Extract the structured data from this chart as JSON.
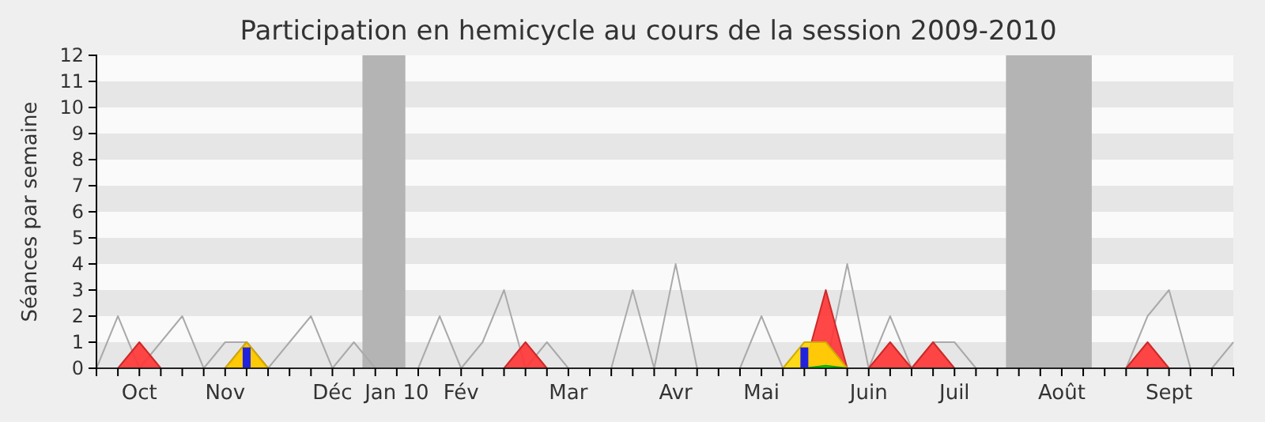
{
  "chart_data": {
    "type": "area",
    "title": "Participation en hemicycle au cours de la session 2009-2010",
    "ylabel": "Séances par semaine",
    "categories": [
      null,
      null,
      "Oct",
      null,
      null,
      null,
      "Nov",
      null,
      null,
      null,
      null,
      "Déc",
      null,
      null,
      "Jan 10",
      null,
      null,
      "Fév",
      null,
      null,
      null,
      null,
      "Mar",
      null,
      null,
      null,
      null,
      "Avr",
      null,
      null,
      null,
      "Mai",
      null,
      null,
      null,
      null,
      "Juin",
      null,
      null,
      null,
      "Juil",
      null,
      null,
      null,
      null,
      "Août",
      null,
      null,
      null,
      null,
      "Sept",
      null,
      null,
      null
    ],
    "series": [
      {
        "type": "line",
        "color": "#aaaaaa",
        "values": [
          0,
          2,
          0,
          1,
          2,
          0,
          1,
          1,
          0,
          1,
          2,
          0,
          1,
          0,
          0,
          0,
          2,
          0,
          1,
          3,
          0,
          1,
          0,
          0,
          0,
          3,
          0,
          4,
          0,
          0,
          0,
          2,
          0,
          0,
          0,
          4,
          0,
          2,
          0,
          1,
          1,
          0,
          0,
          0,
          0,
          0,
          0,
          0,
          0,
          2,
          3,
          0,
          0,
          1
        ]
      },
      {
        "color": "#ff3333",
        "values": [
          0,
          0,
          1,
          0,
          0,
          0,
          0,
          1,
          0,
          0,
          0,
          0,
          0,
          0,
          0,
          0,
          0,
          0,
          0,
          0,
          1,
          0,
          0,
          0,
          0,
          0,
          0,
          0,
          0,
          0,
          0,
          0,
          0,
          0,
          3,
          0,
          0,
          1,
          0,
          1,
          0,
          0,
          0,
          0,
          0,
          0,
          0,
          0,
          0,
          1,
          0,
          0,
          0,
          0
        ]
      },
      {
        "color": "#ffd700",
        "values": [
          0,
          0,
          0,
          0,
          0,
          0,
          0,
          1,
          0,
          0,
          0,
          0,
          0,
          0,
          0,
          0,
          0,
          0,
          0,
          0,
          0,
          0,
          0,
          0,
          0,
          0,
          0,
          0,
          0,
          0,
          0,
          0,
          0,
          1,
          1,
          0,
          0,
          0,
          0,
          0,
          0,
          0,
          0,
          0,
          0,
          0,
          0,
          0,
          0,
          0,
          0,
          0,
          0,
          0
        ]
      },
      {
        "color": "#00dd00",
        "values": [
          0,
          0,
          0,
          0,
          0,
          0,
          0,
          0,
          0,
          0,
          0,
          0,
          0,
          0,
          0,
          0,
          0,
          0,
          0,
          0,
          0,
          0,
          0,
          0,
          0,
          0,
          0,
          0,
          0,
          0,
          0,
          0,
          0,
          0,
          0.1,
          0,
          0,
          0,
          0,
          0,
          0,
          0,
          0,
          0,
          0,
          0,
          0,
          0,
          0,
          0,
          0,
          0,
          0,
          0
        ]
      },
      {
        "type": "bar",
        "color": "#2222dd",
        "values": [
          null,
          null,
          null,
          null,
          null,
          null,
          null,
          0.8,
          null,
          null,
          null,
          null,
          null,
          null,
          null,
          null,
          null,
          null,
          null,
          null,
          null,
          null,
          null,
          null,
          null,
          null,
          null,
          null,
          null,
          null,
          null,
          null,
          null,
          0.8,
          null,
          null,
          null,
          null,
          null,
          null,
          null,
          null,
          null,
          null,
          null,
          null,
          null,
          null,
          null,
          null,
          null,
          null,
          null,
          null
        ]
      }
    ],
    "ylim": [
      0,
      12
    ],
    "yticks": [
      0,
      1,
      2,
      3,
      4,
      5,
      6,
      7,
      8,
      9,
      10,
      11,
      12
    ]
  }
}
